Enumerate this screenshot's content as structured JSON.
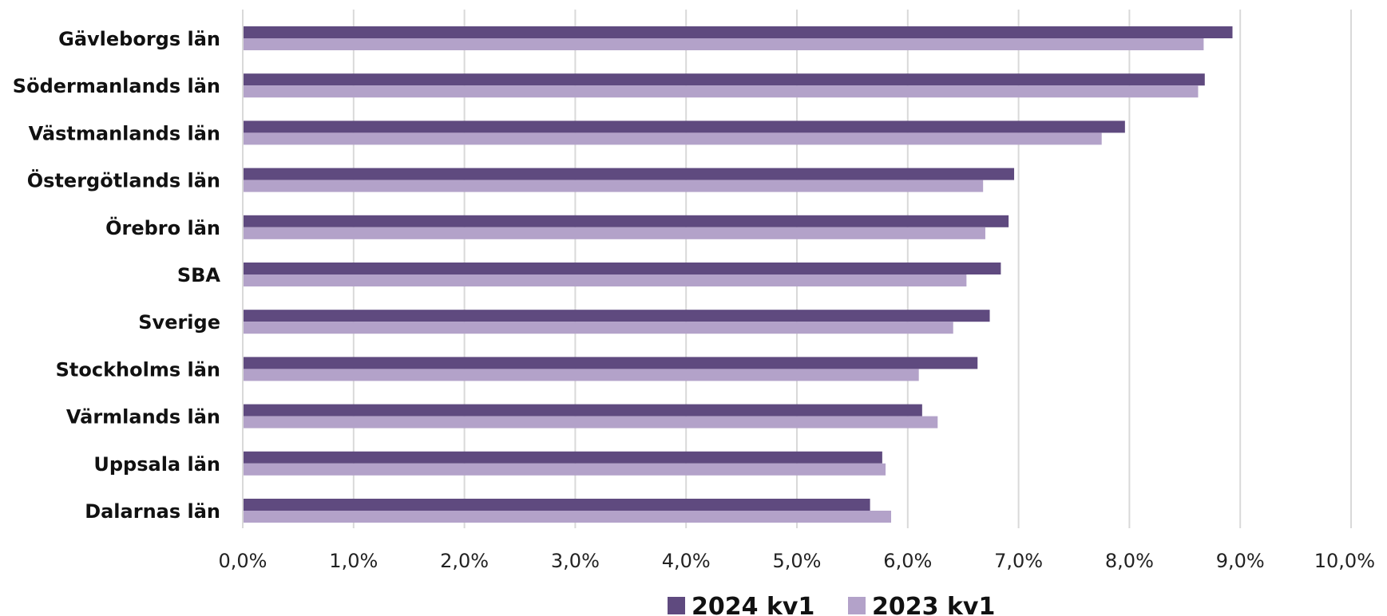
{
  "chart_data": {
    "type": "bar",
    "orientation": "horizontal",
    "categories": [
      "Gävleborgs län",
      "Södermanlands län",
      "Västmanlands län",
      "Östergötlands län",
      "Örebro län",
      "SBA",
      "Sverige",
      "Stockholms län",
      "Värmlands län",
      "Uppsala län",
      "Dalarnas län"
    ],
    "series": [
      {
        "name": "2024 kv1",
        "color": "#5f4a7f",
        "values": [
          8.93,
          8.68,
          7.96,
          6.96,
          6.91,
          6.84,
          6.74,
          6.63,
          6.13,
          5.77,
          5.66
        ]
      },
      {
        "name": "2023 kv1",
        "color": "#b3a2c9",
        "values": [
          8.67,
          8.62,
          7.75,
          6.68,
          6.7,
          6.53,
          6.41,
          6.1,
          6.27,
          5.8,
          5.85
        ]
      }
    ],
    "xlim": [
      0,
      10
    ],
    "xticks": [
      0,
      1,
      2,
      3,
      4,
      5,
      6,
      7,
      8,
      9,
      10
    ],
    "tick_labels": [
      "0,0%",
      "1,0%",
      "2,0%",
      "3,0%",
      "4,0%",
      "5,0%",
      "6,0%",
      "7,0%",
      "8,0%",
      "9,0%",
      "10,0%"
    ],
    "grid": "vertical",
    "legend_position": "bottom",
    "gridline_color": "#d9d9d9"
  }
}
